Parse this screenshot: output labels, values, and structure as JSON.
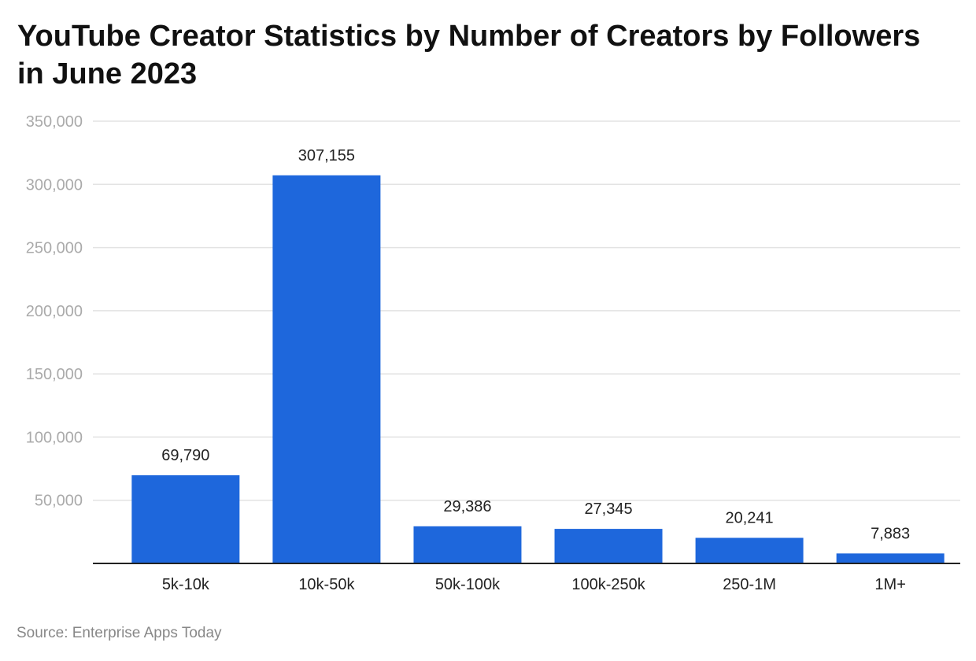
{
  "chart_data": {
    "type": "bar",
    "title": "YouTube Creator Statistics by Number of Creators by Followers in June 2023",
    "categories": [
      "5k-10k",
      "10k-50k",
      "50k-100k",
      "100k-250k",
      "250-1M",
      "1M+"
    ],
    "values": [
      69790,
      307155,
      29386,
      27345,
      20241,
      7883
    ],
    "data_labels": [
      "69,790",
      "307,155",
      "29,386",
      "27,345",
      "20,241",
      "7,883"
    ],
    "xlabel": "",
    "ylabel": "",
    "ylim": [
      0,
      350000
    ],
    "yticks": [
      50000,
      100000,
      150000,
      200000,
      250000,
      300000,
      350000
    ],
    "ytick_labels": [
      "50,000",
      "100,000",
      "150,000",
      "200,000",
      "250,000",
      "300,000",
      "350,000"
    ],
    "grid": true,
    "bar_color": "#1e67dc",
    "source": "Source: Enterprise Apps Today"
  }
}
